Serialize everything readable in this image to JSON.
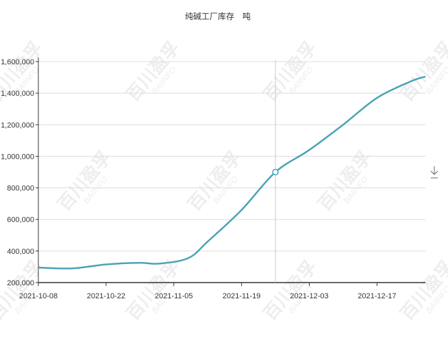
{
  "chart_data": {
    "type": "line",
    "title": "纯碱工厂库存　吨",
    "xlabel": "",
    "ylabel": "",
    "x_tick_labels": [
      "2021-10-08",
      "2021-10-22",
      "2021-11-05",
      "2021-11-19",
      "2021-12-03",
      "2021-12-17"
    ],
    "y_tick_labels": [
      "200,000",
      "400,000",
      "600,000",
      "800,000",
      "1,000,000",
      "1,200,000",
      "1,400,000",
      "1,600,000"
    ],
    "xlim": [
      "2021-10-08",
      "2021-12-27"
    ],
    "ylim": [
      200000,
      1600000
    ],
    "grid": true,
    "legend": "none",
    "series": [
      {
        "color": "#4aa3b5",
        "points": [
          {
            "x": "2021-10-08",
            "y": 295000
          },
          {
            "x": "2021-10-15",
            "y": 290000
          },
          {
            "x": "2021-10-22",
            "y": 315000
          },
          {
            "x": "2021-10-29",
            "y": 325000
          },
          {
            "x": "2021-11-02",
            "y": 320000
          },
          {
            "x": "2021-11-08",
            "y": 355000
          },
          {
            "x": "2021-11-12",
            "y": 460000
          },
          {
            "x": "2021-11-19",
            "y": 660000
          },
          {
            "x": "2021-11-26",
            "y": 900000
          },
          {
            "x": "2021-12-03",
            "y": 1040000
          },
          {
            "x": "2021-12-10",
            "y": 1200000
          },
          {
            "x": "2021-12-17",
            "y": 1370000
          },
          {
            "x": "2021-12-24",
            "y": 1475000
          },
          {
            "x": "2021-12-27",
            "y": 1505000
          }
        ]
      }
    ],
    "crosshair": {
      "x": "2021-11-26",
      "y": 900000
    }
  },
  "watermark": "百川盈孚 BAIINFO",
  "export_icon": "download-icon"
}
